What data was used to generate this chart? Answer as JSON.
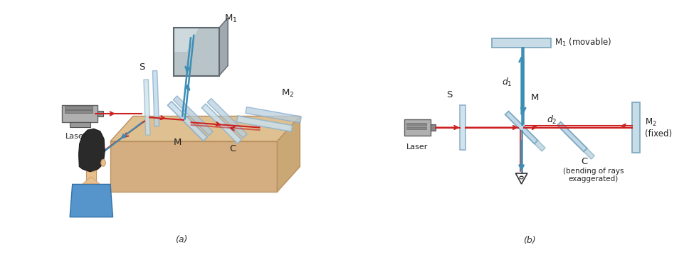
{
  "fig_width": 9.75,
  "fig_height": 3.59,
  "bg_color": "#ffffff",
  "red_color": "#cc2222",
  "blue_color": "#3d8eb5",
  "platform_top": "#dfc090",
  "platform_side_left": "#c9a876",
  "platform_side_front": "#d4ae80",
  "platform_edge": "#b89060",
  "glass_face": "#d0e5ef",
  "glass_edge": "#90b8cc",
  "mirror_face": "#b8d0dc",
  "mirror_dark": "#88a8b8",
  "m1_face": "#c0c8cc",
  "m1_shine": "#e8ecee",
  "label_a": "(a)",
  "label_b": "(b)",
  "label_S": "S",
  "label_M": "M",
  "label_M1": "M$_1$",
  "label_M2": "M$_2$",
  "label_C": "C",
  "label_Laser": "Laser",
  "label_d1": "$d_1$",
  "label_d2": "$d_2$",
  "label_M1_movable": "M$_1$ (movable)",
  "label_M2_fixed": "M$_2$\n(fixed)",
  "label_bending": "(bending of rays\nexaggerated)"
}
